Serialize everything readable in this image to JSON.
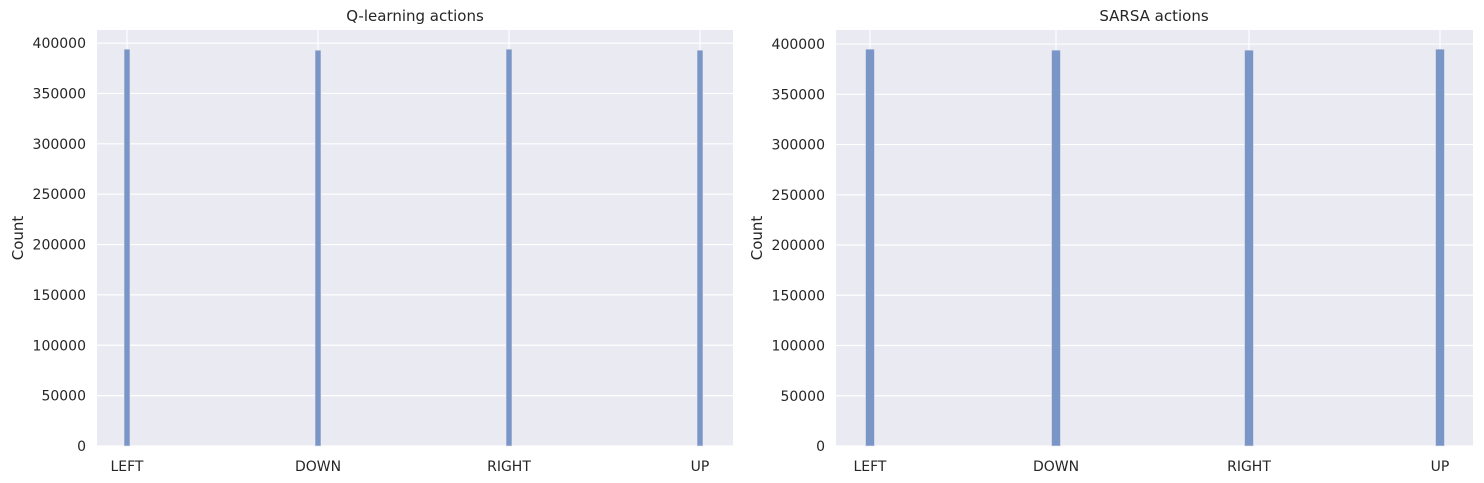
{
  "colors": {
    "bar": "#7A96C6",
    "plot_background": "#EAEAF2",
    "grid": "#FFFFFF"
  },
  "chart_data": [
    {
      "type": "bar",
      "title": "Q-learning actions",
      "xlabel": "",
      "ylabel": "Count",
      "categories": [
        "LEFT",
        "DOWN",
        "RIGHT",
        "UP"
      ],
      "values": [
        394000,
        393000,
        394000,
        393000
      ],
      "ylim": [
        0,
        413000
      ],
      "yticks": [
        0,
        50000,
        100000,
        150000,
        200000,
        250000,
        300000,
        350000,
        400000
      ],
      "grid": true,
      "legend": "none"
    },
    {
      "type": "bar",
      "title": "SARSA actions",
      "xlabel": "",
      "ylabel": "Count",
      "categories": [
        "LEFT",
        "DOWN",
        "RIGHT",
        "UP"
      ],
      "values": [
        395000,
        394000,
        394000,
        395000
      ],
      "ylim": [
        0,
        414000
      ],
      "yticks": [
        0,
        50000,
        100000,
        150000,
        200000,
        250000,
        300000,
        350000,
        400000
      ],
      "grid": true,
      "legend": "none"
    }
  ]
}
